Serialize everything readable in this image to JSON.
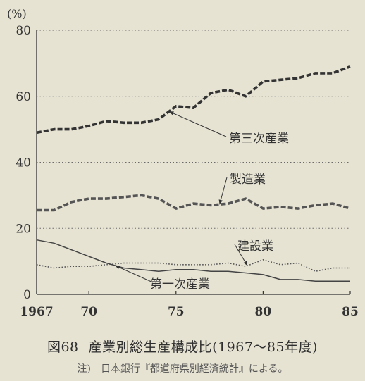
{
  "figure": {
    "number": "図68",
    "title": "産業別総生産構成比(1967〜85年度)",
    "note_label": "注)",
    "note": "日本銀行『都道府県別経済統計』による。"
  },
  "chart_data": {
    "type": "line",
    "unit_label": "(%)",
    "ylim": [
      0,
      80
    ],
    "yticks": [
      0,
      20,
      40,
      60,
      80
    ],
    "xlim": [
      1967,
      1985
    ],
    "xticks": [
      {
        "x": 1967,
        "label": "1967"
      },
      {
        "x": 1970,
        "label": "70"
      },
      {
        "x": 1975,
        "label": "75"
      },
      {
        "x": 1980,
        "label": "80"
      },
      {
        "x": 1985,
        "label": "85"
      }
    ],
    "grid": {
      "horizontal": true,
      "style": "dotted"
    },
    "x": [
      1967,
      1968,
      1969,
      1970,
      1971,
      1972,
      1973,
      1974,
      1975,
      1976,
      1977,
      1978,
      1979,
      1980,
      1981,
      1982,
      1983,
      1984,
      1985
    ],
    "series": [
      {
        "label": "第三次産業",
        "style": "thick-dashed",
        "color": "#333333",
        "values": [
          49,
          50,
          50,
          51,
          52.5,
          52,
          52,
          53,
          57,
          56.5,
          61,
          62,
          60,
          64.5,
          65,
          65.5,
          67,
          67,
          69
        ]
      },
      {
        "label": "製造業",
        "style": "thick-dashed",
        "color": "#555555",
        "values": [
          25.5,
          25.5,
          28,
          29,
          29,
          29.5,
          30,
          29,
          26,
          27.5,
          27,
          27.5,
          29,
          26,
          26.5,
          26,
          27,
          27.5,
          26
        ]
      },
      {
        "label": "建設業",
        "style": "dotted",
        "color": "#555555",
        "values": [
          9,
          8,
          8.5,
          8.5,
          9,
          9.5,
          9.5,
          9.5,
          9,
          9,
          9,
          9.5,
          8.5,
          10.5,
          9,
          9.5,
          7,
          8,
          8
        ]
      },
      {
        "label": "第一次産業",
        "style": "solid",
        "color": "#444444",
        "values": [
          16.5,
          15.5,
          13.5,
          11.5,
          9.5,
          8,
          7.5,
          7,
          7.5,
          7.5,
          7,
          7,
          6.5,
          6,
          4.5,
          4.5,
          4,
          4,
          4
        ]
      }
    ]
  }
}
